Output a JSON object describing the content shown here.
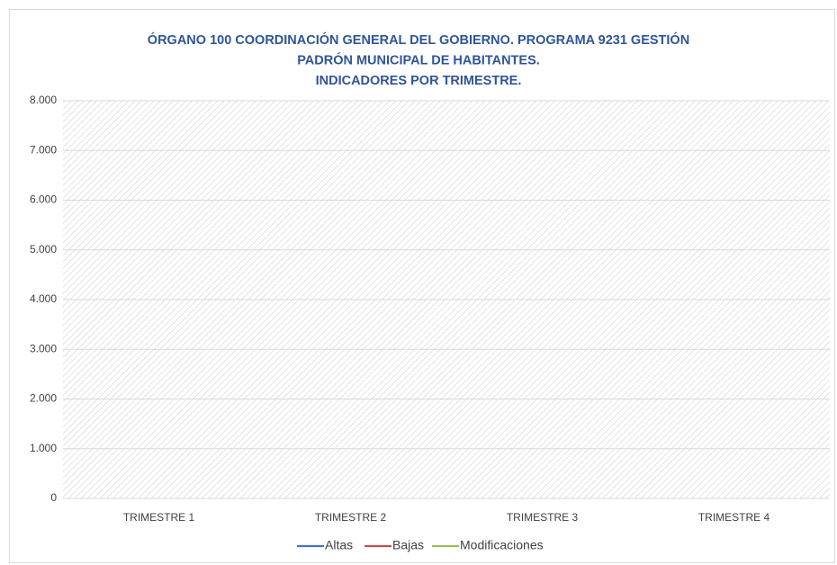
{
  "chart_data": {
    "type": "line",
    "title": [
      "ÓRGANO 100 COORDINACIÓN GENERAL DEL GOBIERNO. PROGRAMA 9231 GESTIÓN",
      "PADRÓN MUNICIPAL DE HABITANTES.",
      "INDICADORES POR TRIMESTRE."
    ],
    "categories": [
      "TRIMESTRE 1",
      "TRIMESTRE 2",
      "TRIMESTRE 3",
      "TRIMESTRE 4"
    ],
    "series": [
      {
        "name": "Altas",
        "color": "#4472c4",
        "values": [
          null,
          null,
          null,
          null
        ]
      },
      {
        "name": "Bajas",
        "color": "#c0504d",
        "values": [
          null,
          null,
          null,
          null
        ]
      },
      {
        "name": "Modificaciones",
        "color": "#9bbb59",
        "values": [
          null,
          null,
          null,
          null
        ]
      }
    ],
    "ylim": [
      0,
      8000
    ],
    "yticks": [
      0,
      {
        "value": 1000,
        "label": "1.000"
      },
      {
        "value": 2000,
        "label": "2.000"
      },
      {
        "value": 3000,
        "label": "3.000"
      },
      {
        "value": 4000,
        "label": "4.000"
      },
      {
        "value": 5000,
        "label": "5.000"
      },
      {
        "value": 6000,
        "label": "6.000"
      },
      {
        "value": 7000,
        "label": "7.000"
      },
      {
        "value": 8000,
        "label": "8.000"
      }
    ],
    "grid": true,
    "legend": "bottom"
  }
}
